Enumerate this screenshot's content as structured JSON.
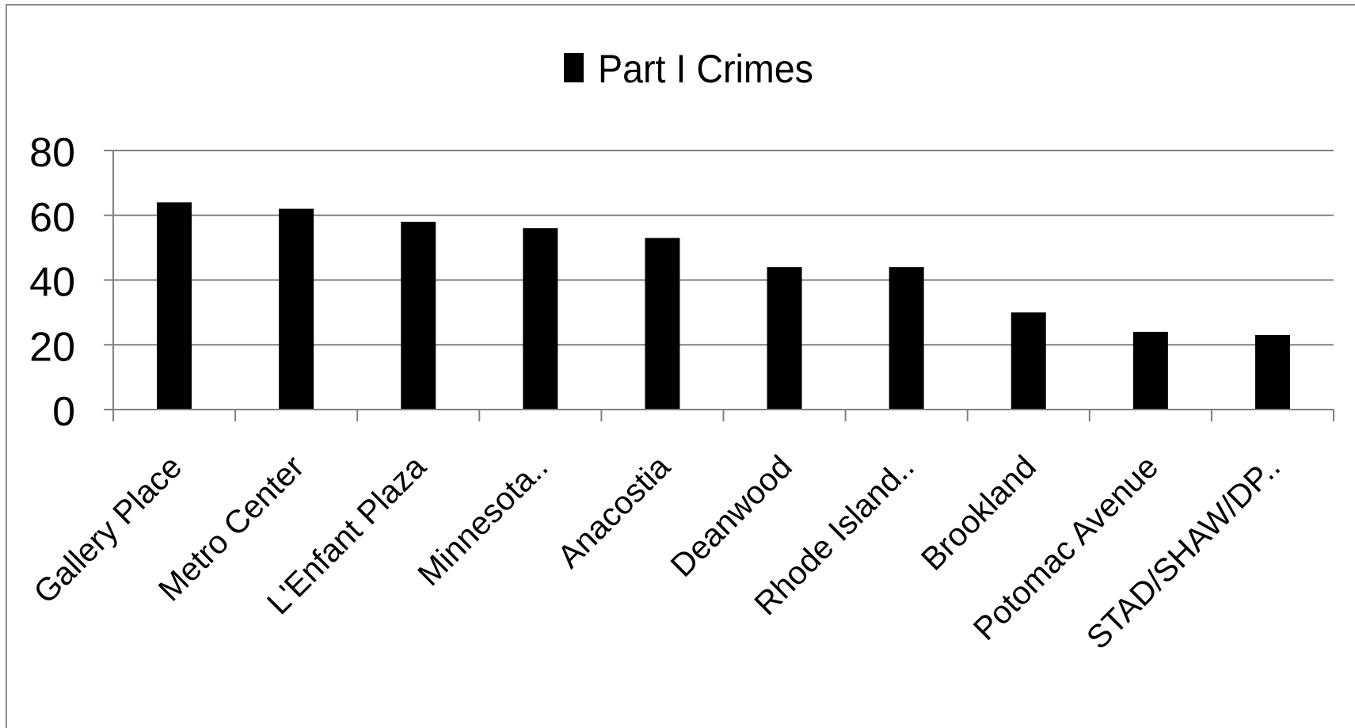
{
  "chart_data": {
    "type": "bar",
    "title": "",
    "xlabel": "",
    "ylabel": "",
    "categories": [
      "Gallery Place",
      "Metro Center",
      "L'Enfant Plaza",
      "Minnesota..",
      "Anacostia",
      "Deanwood",
      "Rhode Island..",
      "Brookland",
      "Potomac Avenue",
      "STAD/SHAW/DP.."
    ],
    "series": [
      {
        "name": "Part I Crimes",
        "color": "#000000",
        "values": [
          64,
          62,
          58,
          56,
          53,
          44,
          44,
          30,
          24,
          23
        ]
      }
    ],
    "ylim": [
      0,
      80
    ],
    "yticks": [
      "0",
      "20",
      "40",
      "60",
      "80"
    ],
    "grid": true,
    "legend_position": "top-center",
    "colors": {
      "bar": "#000000",
      "grid": "#808080",
      "frame": "#8c8c8c",
      "background": "#ffffff"
    }
  }
}
